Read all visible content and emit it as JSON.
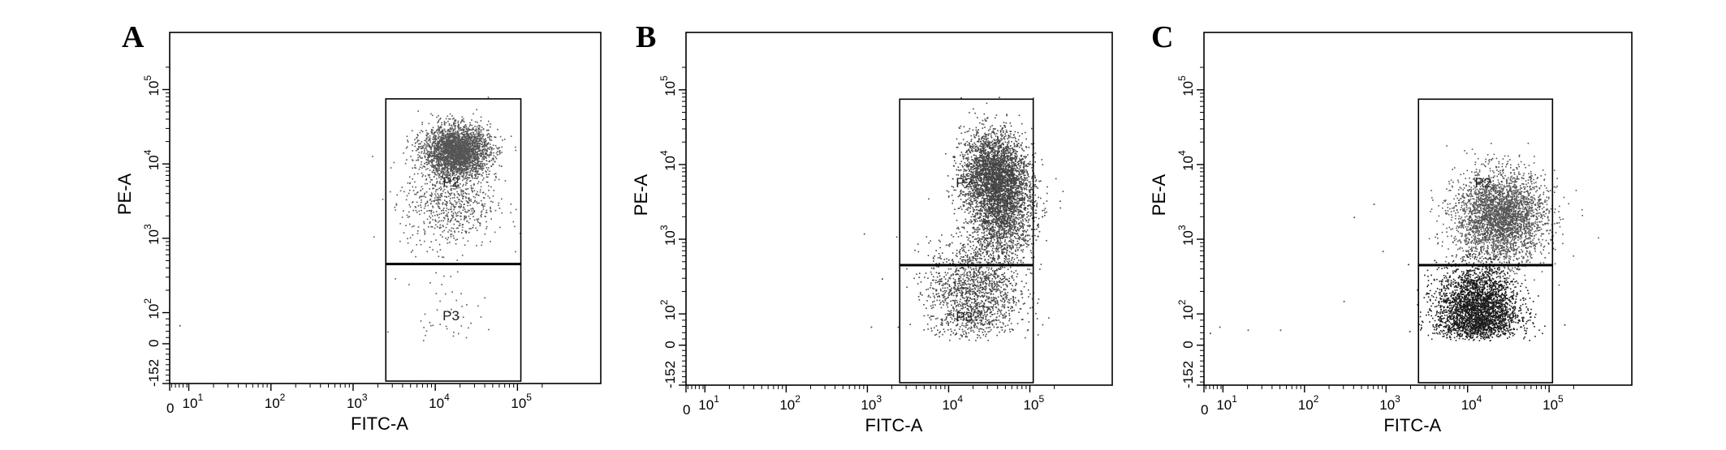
{
  "chart_data": [
    {
      "type": "scatter",
      "panel": "A",
      "xlabel": "FITC-A",
      "ylabel": "PE-A",
      "x_scale": "log",
      "y_scale": "log",
      "x_tick_labels": [
        "0",
        "10^1",
        "10^2",
        "10^3",
        "10^4",
        "10^5"
      ],
      "y_tick_labels": [
        "-152",
        "0",
        "10^2",
        "10^3",
        "10^4",
        "10^5"
      ],
      "gates": [
        {
          "name": "P2",
          "x_range": [
            2500,
            110000
          ],
          "y_range": [
            450,
            75000
          ]
        },
        {
          "name": "P3",
          "x_range": [
            2500,
            110000
          ],
          "y_range": [
            -152,
            450
          ]
        }
      ],
      "clusters": [
        {
          "x_center": 18000,
          "y_center": 15000,
          "x_spread_decades": 0.2,
          "y_spread_decades": 0.17,
          "count": 3000,
          "color": "#555555"
        },
        {
          "x_center": 15000,
          "y_center": 3000,
          "x_spread_decades": 0.28,
          "y_spread_decades": 0.3,
          "count": 700,
          "color": "#555555"
        },
        {
          "x_center": 13000,
          "y_center": 100,
          "x_spread_decades": 0.25,
          "y_spread_decades": 0.3,
          "count": 45,
          "color": "#555555"
        }
      ],
      "scattered_points": [
        [
          5,
          60
        ]
      ]
    },
    {
      "type": "scatter",
      "panel": "B",
      "xlabel": "FITC-A",
      "ylabel": "PE-A",
      "x_scale": "log",
      "y_scale": "log",
      "x_tick_labels": [
        "0",
        "10^1",
        "10^2",
        "10^3",
        "10^4",
        "10^5"
      ],
      "y_tick_labels": [
        "-152",
        "0",
        "10^2",
        "10^3",
        "10^4",
        "10^5"
      ],
      "gates": [
        {
          "name": "P2",
          "x_range": [
            2500,
            110000
          ],
          "y_range": [
            450,
            75000
          ]
        },
        {
          "name": "P3",
          "x_range": [
            2500,
            110000
          ],
          "y_range": [
            -152,
            450
          ]
        }
      ],
      "clusters": [
        {
          "x_center": 35000,
          "y_center": 8000,
          "x_spread_decades": 0.2,
          "y_spread_decades": 0.28,
          "count": 2400,
          "color": "#444444"
        },
        {
          "x_center": 45000,
          "y_center": 2500,
          "x_spread_decades": 0.2,
          "y_spread_decades": 0.35,
          "count": 2000,
          "color": "#444444"
        },
        {
          "x_center": 20000,
          "y_center": 200,
          "x_spread_decades": 0.28,
          "y_spread_decades": 0.35,
          "count": 1500,
          "color": "#444444"
        }
      ],
      "scattered_points": [
        [
          900,
          1200
        ],
        [
          1100,
          60
        ],
        [
          1500,
          300
        ]
      ]
    },
    {
      "type": "scatter",
      "panel": "C",
      "xlabel": "FITC-A",
      "ylabel": "PE-A",
      "x_scale": "log",
      "y_scale": "log",
      "x_tick_labels": [
        "0",
        "10^1",
        "10^2",
        "10^3",
        "10^4",
        "10^5"
      ],
      "y_tick_labels": [
        "-152",
        "0",
        "10^2",
        "10^3",
        "10^4",
        "10^5"
      ],
      "gates": [
        {
          "name": "P2",
          "x_range": [
            2500,
            110000
          ],
          "y_range": [
            450,
            75000
          ]
        },
        {
          "name": "P3",
          "x_range": [
            2500,
            110000
          ],
          "y_range": [
            -152,
            450
          ]
        }
      ],
      "clusters": [
        {
          "x_center": 25000,
          "y_center": 2000,
          "x_spread_decades": 0.28,
          "y_spread_decades": 0.3,
          "count": 3200,
          "color": "#555555"
        },
        {
          "x_center": 13000,
          "y_center": 120,
          "x_spread_decades": 0.25,
          "y_spread_decades": 0.28,
          "count": 3000,
          "color": "#1a1a1a"
        }
      ],
      "scattered_points": [
        [
          3,
          40
        ],
        [
          8,
          60
        ],
        [
          20,
          50
        ],
        [
          50,
          50
        ],
        [
          400,
          2000
        ],
        [
          700,
          3000
        ],
        [
          900,
          700
        ],
        [
          300,
          150
        ]
      ]
    }
  ]
}
